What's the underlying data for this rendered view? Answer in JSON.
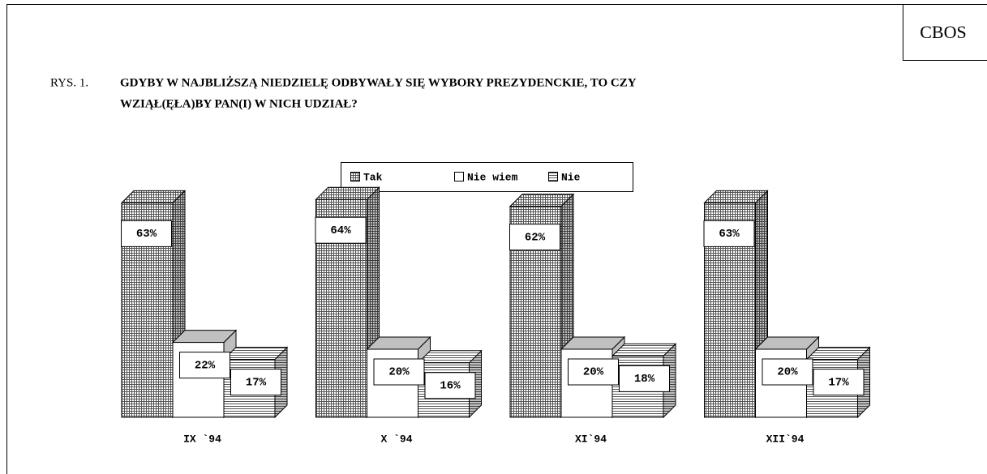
{
  "source": "CBOS",
  "figure_label": "RYS. 1.",
  "chart_data": {
    "type": "bar3d",
    "title": [
      "GDYBY W NAJBLIŻSZĄ NIEDZIELĘ ODBYWAŁY SIĘ WYBORY PREZYDENCKIE, TO CZY",
      "WZIĄŁ(ĘŁA)BY PAN(I) W NICH UDZIAŁ?"
    ],
    "categories": [
      "IX `94",
      "X `94",
      "XI`94",
      "XII`94"
    ],
    "series": [
      {
        "name": "Tak",
        "color": "#555555",
        "values": [
          63,
          64,
          62,
          63
        ],
        "value_labels": [
          "63%",
          "64%",
          "62%",
          "63%"
        ]
      },
      {
        "name": "Nie wiem",
        "color": "#ffffff",
        "values": [
          22,
          20,
          20,
          20
        ],
        "value_labels": [
          "22%",
          "20%",
          "20%",
          "20%"
        ]
      },
      {
        "name": "Nie",
        "color": "#555555",
        "values": [
          17,
          16,
          18,
          17
        ],
        "value_labels": [
          "17%",
          "16%",
          "18%",
          "17%"
        ]
      }
    ]
  }
}
